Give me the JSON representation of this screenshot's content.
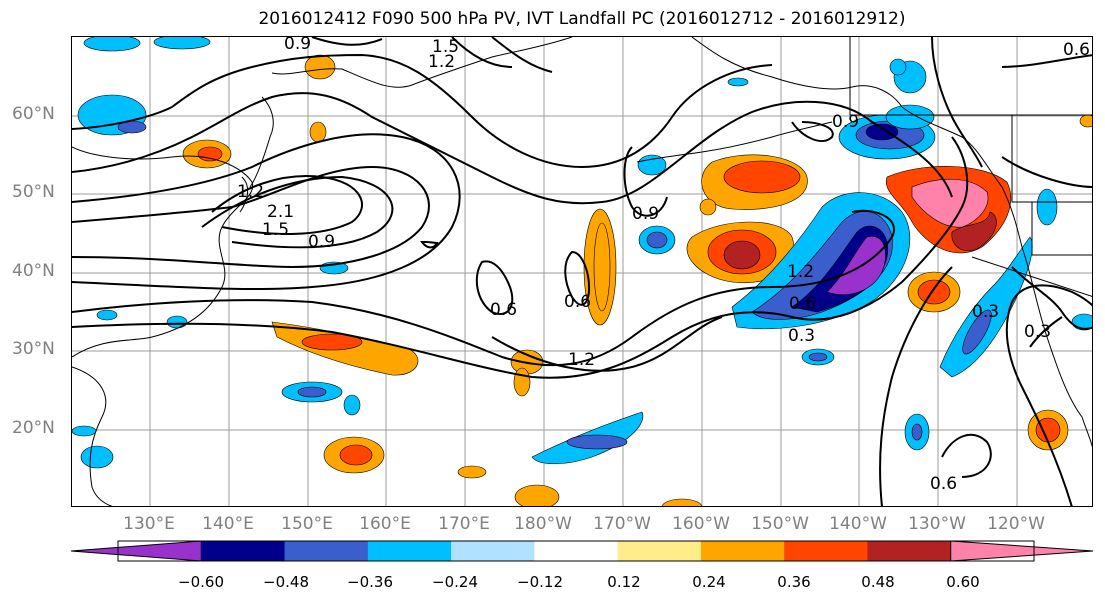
{
  "title": "2016012412 F090 500 hPa PV, IVT Landfall PC (2016012712 - 2016012912)",
  "lat_labels": [
    "60°N",
    "50°N",
    "40°N",
    "30°N",
    "20°N"
  ],
  "lon_labels": [
    "130°E",
    "140°E",
    "150°E",
    "160°E",
    "170°E",
    "180°W",
    "170°W",
    "160°W",
    "150°W",
    "140°W",
    "130°W",
    "120°W"
  ],
  "colorbar": {
    "colors": [
      "#9932cc",
      "#00008b",
      "#3a5fcd",
      "#00bfff",
      "#b0e2ff",
      "#ffffff",
      "#ffec8b",
      "#ffa500",
      "#ff4500",
      "#b22222",
      "#ff82ab"
    ],
    "tick_labels": [
      "−0.60",
      "−0.48",
      "−0.36",
      "−0.24",
      "−0.12",
      "0.12",
      "0.24",
      "0.36",
      "0.48",
      "0.60"
    ]
  },
  "contour_labels": [
    "0.9",
    "1.5",
    "1.2",
    "0.6",
    "0.9",
    "1.2",
    "2.1",
    "1.5",
    "0.9",
    "0.9",
    "0.6",
    "0.6",
    "1.2",
    "1.2",
    "0.6",
    "0.3",
    "0.3",
    "0.3",
    "0.6"
  ]
}
